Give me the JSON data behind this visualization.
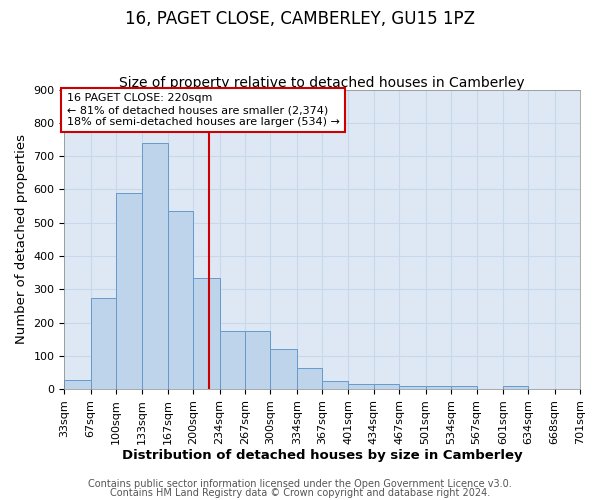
{
  "title": "16, PAGET CLOSE, CAMBERLEY, GU15 1PZ",
  "subtitle": "Size of property relative to detached houses in Camberley",
  "xlabel": "Distribution of detached houses by size in Camberley",
  "ylabel": "Number of detached properties",
  "footer_lines": [
    "Contains HM Land Registry data © Crown copyright and database right 2024.",
    "Contains public sector information licensed under the Open Government Licence v3.0."
  ],
  "bins": [
    33,
    67,
    100,
    133,
    167,
    200,
    234,
    267,
    300,
    334,
    367,
    401,
    434,
    467,
    501,
    534,
    567,
    601,
    634,
    668,
    701
  ],
  "values": [
    27,
    275,
    590,
    740,
    535,
    335,
    175,
    175,
    120,
    65,
    25,
    15,
    15,
    10,
    10,
    10,
    0,
    10,
    0,
    0,
    0
  ],
  "bar_facecolor": "#bdd4ea",
  "bar_edgecolor": "#6699cc",
  "grid_color": "#c8d8ea",
  "background_color": "#dde8f4",
  "vline_x": 220,
  "vline_color": "#cc0000",
  "annotation_text": "16 PAGET CLOSE: 220sqm\n← 81% of detached houses are smaller (2,374)\n18% of semi-detached houses are larger (534) →",
  "annotation_box_color": "#cc0000",
  "ylim": [
    0,
    900
  ],
  "yticks": [
    0,
    100,
    200,
    300,
    400,
    500,
    600,
    700,
    800,
    900
  ],
  "title_fontsize": 12,
  "subtitle_fontsize": 10,
  "axis_label_fontsize": 9.5,
  "tick_fontsize": 8,
  "annotation_fontsize": 8,
  "footer_fontsize": 7
}
